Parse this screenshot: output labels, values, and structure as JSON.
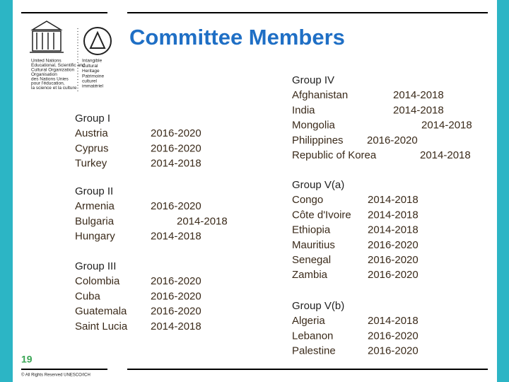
{
  "header": {
    "title": "Committee Members"
  },
  "logo": {
    "unesco_lines": [
      "United Nations",
      "Educational, Scientific and",
      "Cultural Organization",
      "Organisation",
      "des Nations Unies",
      "pour l'éducation,",
      "la science et la culture"
    ],
    "ich_lines": [
      "Intangible",
      "Cultural",
      "Heritage",
      "Patrimoine",
      "culturel",
      "immatériel"
    ]
  },
  "groups": [
    {
      "name": "Group I",
      "members": [
        {
          "country": "Austria",
          "term": "2016-2020"
        },
        {
          "country": "Cyprus",
          "term": "2016-2020"
        },
        {
          "country": "Turkey",
          "term": "2014-2018"
        }
      ]
    },
    {
      "name": "Group II",
      "members": [
        {
          "country": "Armenia",
          "term": "2016-2020"
        },
        {
          "country": "Bulgaria",
          "term": "2014-2018"
        },
        {
          "country": "Hungary",
          "term": "2014-2018"
        }
      ]
    },
    {
      "name": "Group III",
      "members": [
        {
          "country": "Colombia",
          "term": "2016-2020"
        },
        {
          "country": "Cuba",
          "term": "2016-2020"
        },
        {
          "country": "Guatemala",
          "term": "2016-2020"
        },
        {
          "country": "Saint Lucia",
          "term": "2014-2018"
        }
      ]
    },
    {
      "name": "Group IV",
      "members": [
        {
          "country": "Afghanistan",
          "term": "2014-2018"
        },
        {
          "country": "India",
          "term": "2014-2018"
        },
        {
          "country": "Mongolia",
          "term": "2014-2018"
        },
        {
          "country": "Philippines",
          "term": "2016-2020"
        },
        {
          "country": "Republic of Korea",
          "term": "2014-2018"
        }
      ]
    },
    {
      "name": "Group V(a)",
      "members": [
        {
          "country": "Congo",
          "term": "2014-2018"
        },
        {
          "country": "Côte d'Ivoire",
          "term": "2014-2018"
        },
        {
          "country": "Ethiopia",
          "term": "2014-2018"
        },
        {
          "country": "Mauritius",
          "term": "2016-2020"
        },
        {
          "country": "Senegal",
          "term": "2016-2020"
        },
        {
          "country": "Zambia",
          "term": "2016-2020"
        }
      ]
    },
    {
      "name": "Group V(b)",
      "members": [
        {
          "country": "Algeria",
          "term": "2014-2018"
        },
        {
          "country": "Lebanon",
          "term": "2016-2020"
        },
        {
          "country": "Palestine",
          "term": "2016-2020"
        }
      ]
    }
  ],
  "footer": {
    "page_number": "19",
    "copyright": "© All Rights Reserved UNESCO/ICH"
  }
}
